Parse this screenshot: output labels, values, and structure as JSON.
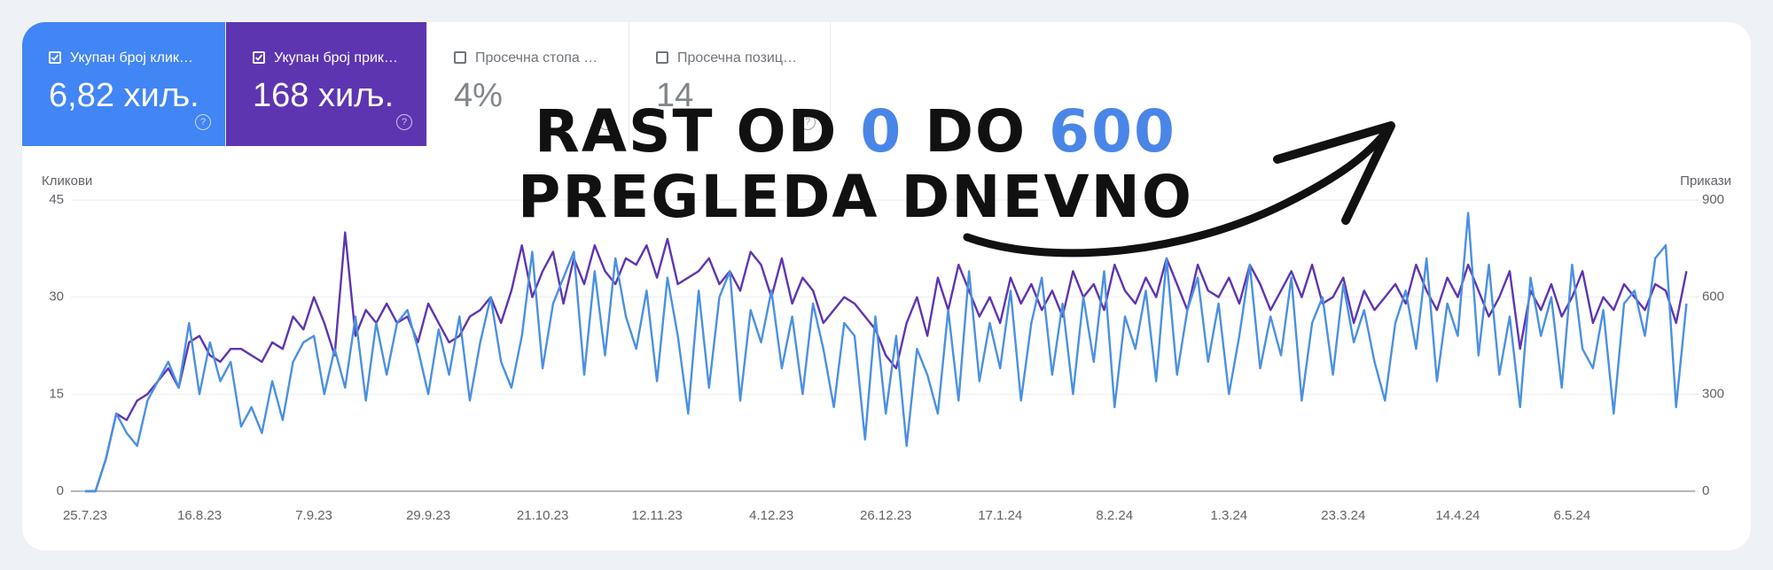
{
  "metrics": [
    {
      "label": "Укупан број клик…",
      "value": "6,82 хиљ.",
      "checked": true,
      "color": "#4285f4"
    },
    {
      "label": "Укупан број прик…",
      "value": "168 хиљ.",
      "checked": true,
      "color": "#5e35b1"
    },
    {
      "label": "Просечна стопа …",
      "value": "4%",
      "checked": false,
      "color": "#ffffff"
    },
    {
      "label": "Просечна позиц…",
      "value": "14",
      "checked": false,
      "color": "#ffffff"
    }
  ],
  "headline": {
    "lines": [
      [
        {
          "text": "RAST OD ",
          "color": "#111111"
        },
        {
          "text": "0",
          "color": "#4a86e8"
        },
        {
          "text": " DO ",
          "color": "#111111"
        },
        {
          "text": "600",
          "color": "#4a86e8"
        }
      ],
      [
        {
          "text": "PREGLEDA DNEVNO",
          "color": "#111111"
        }
      ]
    ]
  },
  "chart_data": {
    "type": "line",
    "y_label": "Кликови",
    "y2_label": "Прикази",
    "ylim": [
      0,
      45
    ],
    "yticks": [
      0,
      15,
      30,
      45
    ],
    "y2lim": [
      0,
      900
    ],
    "y2ticks": [
      0,
      300,
      600,
      900
    ],
    "grid": true,
    "categories": [
      "25.7.23",
      null,
      null,
      null,
      null,
      null,
      null,
      null,
      null,
      null,
      null,
      "16.8.23",
      null,
      null,
      null,
      null,
      null,
      null,
      null,
      null,
      null,
      null,
      "7.9.23",
      null,
      null,
      null,
      null,
      null,
      null,
      null,
      null,
      null,
      null,
      "29.9.23",
      null,
      null,
      null,
      null,
      null,
      null,
      null,
      null,
      null,
      null,
      "21.10.23",
      null,
      null,
      null,
      null,
      null,
      null,
      null,
      null,
      null,
      null,
      "12.11.23",
      null,
      null,
      null,
      null,
      null,
      null,
      null,
      null,
      null,
      null,
      "4.12.23",
      null,
      null,
      null,
      null,
      null,
      null,
      null,
      null,
      null,
      null,
      "26.12.23",
      null,
      null,
      null,
      null,
      null,
      null,
      null,
      null,
      null,
      null,
      "17.1.24",
      null,
      null,
      null,
      null,
      null,
      null,
      null,
      null,
      null,
      null,
      "8.2.24",
      null,
      null,
      null,
      null,
      null,
      null,
      null,
      null,
      null,
      null,
      "1.3.24",
      null,
      null,
      null,
      null,
      null,
      null,
      null,
      null,
      null,
      null,
      "23.3.24",
      null,
      null,
      null,
      null,
      null,
      null,
      null,
      null,
      null,
      null,
      "14.4.24",
      null,
      null,
      null,
      null,
      null,
      null,
      null,
      null,
      null,
      null,
      "6.5.24",
      null,
      null,
      null,
      null,
      null,
      null,
      null,
      null,
      null,
      null,
      null
    ],
    "series": [
      {
        "color": "#5e35b1",
        "axis": "y2",
        "values": [
          0,
          0,
          100,
          240,
          220,
          280,
          300,
          340,
          380,
          320,
          460,
          480,
          420,
          400,
          440,
          440,
          420,
          400,
          460,
          440,
          540,
          500,
          600,
          520,
          420,
          800,
          480,
          560,
          520,
          580,
          520,
          540,
          460,
          580,
          520,
          460,
          480,
          540,
          560,
          600,
          520,
          620,
          760,
          600,
          680,
          740,
          580,
          720,
          640,
          760,
          680,
          640,
          720,
          700,
          760,
          660,
          780,
          640,
          660,
          680,
          720,
          640,
          680,
          620,
          740,
          700,
          600,
          720,
          580,
          660,
          620,
          520,
          560,
          600,
          580,
          540,
          500,
          420,
          380,
          520,
          600,
          480,
          660,
          560,
          700,
          620,
          540,
          600,
          520,
          660,
          580,
          640,
          560,
          620,
          540,
          680,
          600,
          640,
          560,
          700,
          620,
          580,
          660,
          600,
          720,
          640,
          560,
          700,
          620,
          600,
          660,
          580,
          700,
          640,
          560,
          620,
          680,
          600,
          700,
          580,
          600,
          660,
          520,
          620,
          560,
          600,
          640,
          580,
          700,
          620,
          560,
          660,
          600,
          700,
          620,
          540,
          600,
          680,
          440,
          620,
          560,
          640,
          540,
          600,
          680,
          520,
          600,
          560,
          640,
          600,
          560,
          640,
          620,
          520,
          680
        ]
      },
      {
        "color": "#4a90e2",
        "values": [
          0,
          0,
          5,
          12,
          9,
          7,
          14,
          17,
          20,
          16,
          26,
          15,
          23,
          17,
          20,
          10,
          13,
          9,
          17,
          11,
          20,
          23,
          24,
          15,
          22,
          16,
          27,
          14,
          26,
          18,
          26,
          28,
          22,
          15,
          25,
          18,
          27,
          14,
          23,
          30,
          20,
          16,
          24,
          37,
          19,
          29,
          33,
          37,
          18,
          34,
          21,
          36,
          27,
          22,
          31,
          17,
          33,
          24,
          12,
          31,
          16,
          30,
          34,
          14,
          28,
          23,
          31,
          19,
          27,
          15,
          29,
          22,
          13,
          26,
          24,
          8,
          27,
          12,
          24,
          7,
          22,
          18,
          12,
          28,
          14,
          34,
          17,
          26,
          19,
          31,
          14,
          26,
          33,
          18,
          29,
          15,
          30,
          20,
          34,
          13,
          27,
          22,
          31,
          17,
          36,
          18,
          28,
          33,
          20,
          29,
          15,
          24,
          35,
          19,
          27,
          21,
          33,
          14,
          26,
          30,
          18,
          32,
          23,
          28,
          20,
          14,
          26,
          31,
          22,
          36,
          17,
          29,
          24,
          43,
          21,
          35,
          18,
          27,
          13,
          33,
          24,
          30,
          16,
          35,
          22,
          19,
          28,
          12,
          29,
          31,
          24,
          36,
          38,
          13,
          29
        ]
      }
    ]
  }
}
